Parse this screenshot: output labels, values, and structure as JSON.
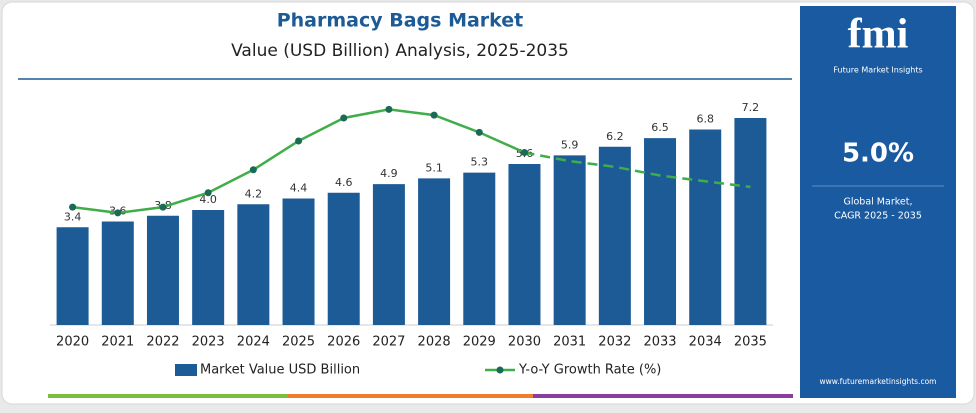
{
  "chart_data": {
    "type": "bar-line",
    "title": "Pharmacy Bags Market",
    "subtitle": "Value (USD Billion) Analysis, 2025-2035",
    "categories": [
      "2020",
      "2021",
      "2022",
      "2023",
      "2024",
      "2025",
      "2026",
      "2027",
      "2028",
      "2029",
      "2030",
      "2031",
      "2032",
      "2033",
      "2034",
      "2035"
    ],
    "series": [
      {
        "name": "Market Value USD Billion",
        "type": "bar",
        "color": "#1d5b97",
        "values": [
          3.4,
          3.6,
          3.8,
          4.0,
          4.2,
          4.4,
          4.6,
          4.9,
          5.1,
          5.3,
          5.6,
          5.9,
          6.2,
          6.5,
          6.8,
          7.2
        ],
        "value_labels": [
          "3.4",
          "3.6",
          "3.8",
          "4.0",
          "4.2",
          "4.4",
          "4.6",
          "4.9",
          "5.1",
          "5.3",
          "5.6",
          "5.9",
          "6.2",
          "6.5",
          "6.8",
          "7.2"
        ]
      },
      {
        "name": "Y-o-Y Growth Rate (%)",
        "type": "line",
        "axis": "y2",
        "color": "#3fae49",
        "dashed_after": "2030",
        "values": [
          4.1,
          3.9,
          4.1,
          4.6,
          5.4,
          6.4,
          7.2,
          7.5,
          7.3,
          6.7,
          6.0,
          5.7,
          5.5,
          5.2,
          5.0,
          4.8
        ]
      }
    ],
    "ylim": [
      0,
      8
    ],
    "y2lim": [
      0,
      8
    ],
    "legend": "bottom"
  },
  "panel": {
    "logo": "fmi",
    "brand": "Future Market Insights",
    "cagr": "5.0%",
    "caption": [
      "Global Market,",
      "CAGR 2025 - 2035"
    ],
    "url": "www.futuremarketinsights.com"
  }
}
